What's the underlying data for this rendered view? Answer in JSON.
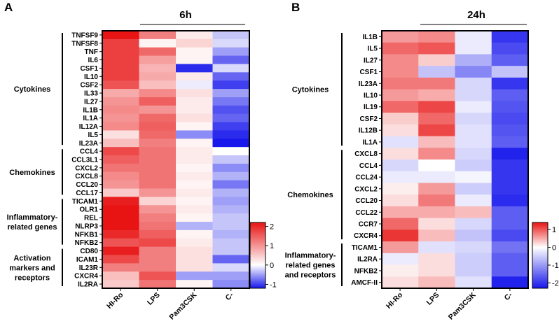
{
  "chart_data": [
    {
      "type": "heatmap",
      "panel": "A",
      "title": "6h",
      "columns": [
        "HI-Ro",
        "LPS",
        "Pam3CSK",
        "C-"
      ],
      "rows": [
        "TNFSF9",
        "TNFSF8",
        "TNF",
        "IL6",
        "CSF1",
        "IL10",
        "CSF2",
        "IL33",
        "IL27",
        "IL1B",
        "IL1A",
        "IL12A",
        "IL5",
        "IL23A",
        "CCL4",
        "CCL3L1",
        "CXCL2",
        "CXCL8",
        "CCL20",
        "CCL17",
        "TICAM1",
        "OLR1",
        "REL",
        "NLRP3",
        "NFKB1",
        "NFKB2",
        "CD80",
        "ICAM1",
        "IL23R",
        "CXCR4",
        "IL2RA"
      ],
      "groups": [
        {
          "label": [
            "Cytokines"
          ],
          "start": 0,
          "end": 13
        },
        {
          "label": [
            "Chemokines"
          ],
          "start": 14,
          "end": 19
        },
        {
          "label": [
            "Inflammatory-",
            "related genes"
          ],
          "start": 20,
          "end": 25
        },
        {
          "label": [
            "Activation",
            "markers and",
            "receptors"
          ],
          "start": 26,
          "end": 30
        }
      ],
      "colorbar": {
        "min": -1.2,
        "max": 2.2,
        "ticks": [
          -1,
          0,
          1,
          2
        ]
      },
      "values": [
        [
          2.2,
          1.2,
          0.2,
          -0.3
        ],
        [
          1.8,
          0.1,
          0.4,
          -0.2
        ],
        [
          1.8,
          1.4,
          0.1,
          -0.5
        ],
        [
          1.8,
          0.9,
          0.1,
          -0.8
        ],
        [
          1.8,
          0.7,
          -1.1,
          -0.2
        ],
        [
          1.8,
          0.8,
          0.2,
          -0.8
        ],
        [
          1.6,
          0.6,
          -0.1,
          -1.0
        ],
        [
          0.8,
          1.1,
          0.3,
          -0.5
        ],
        [
          1.0,
          1.5,
          0.2,
          -0.7
        ],
        [
          1.1,
          1.0,
          0.2,
          -0.9
        ],
        [
          1.0,
          1.4,
          0.3,
          -0.8
        ],
        [
          1.1,
          1.5,
          0.1,
          -1.0
        ],
        [
          0.3,
          1.4,
          -0.6,
          -1.1
        ],
        [
          0.6,
          1.2,
          0.1,
          -1.2
        ],
        [
          1.7,
          1.3,
          0.2,
          0.0
        ],
        [
          1.5,
          1.3,
          0.2,
          -0.3
        ],
        [
          1.3,
          1.3,
          0.1,
          -0.6
        ],
        [
          1.1,
          1.3,
          0.2,
          -0.4
        ],
        [
          1.0,
          1.3,
          0.1,
          -0.7
        ],
        [
          0.5,
          1.0,
          0.2,
          -0.4
        ],
        [
          2.1,
          0.4,
          0.1,
          -0.5
        ],
        [
          2.2,
          1.0,
          0.2,
          -0.4
        ],
        [
          2.2,
          1.2,
          0.1,
          -0.3
        ],
        [
          2.2,
          1.3,
          -0.4,
          -0.3
        ],
        [
          2.0,
          1.5,
          0.1,
          -0.4
        ],
        [
          1.6,
          1.7,
          0.2,
          -0.3
        ],
        [
          2.1,
          1.2,
          0.3,
          -0.3
        ],
        [
          1.7,
          1.2,
          0.3,
          -0.8
        ],
        [
          1.2,
          1.2,
          0.3,
          -0.2
        ],
        [
          0.6,
          1.6,
          -0.5,
          -0.5
        ],
        [
          0.5,
          1.3,
          0.1,
          -0.6
        ]
      ]
    },
    {
      "type": "heatmap",
      "panel": "B",
      "title": "24h",
      "columns": [
        "HI-Ro",
        "LPS",
        "Pam3CSK",
        "C-"
      ],
      "rows": [
        "IL1B",
        "IL5",
        "IL27",
        "CSF1",
        "IL23A",
        "IL10",
        "IL19",
        "CSF2",
        "IL12B",
        "IL1A",
        "CXCL8",
        "CCL4",
        "CCL24",
        "CXCL2",
        "CCL20",
        "CCL22",
        "CCR7",
        "CXCR4",
        "TICAM1",
        "IL2RA",
        "NFKB2",
        "AMCF-II"
      ],
      "groups": [
        {
          "label": [
            "Cytokines"
          ],
          "start": 0,
          "end": 9
        },
        {
          "label": [
            "Chemokines"
          ],
          "start": 10,
          "end": 17
        },
        {
          "label": [
            "Inflammatory-",
            "related genes",
            "and receptors"
          ],
          "start": 18,
          "end": 21
        }
      ],
      "colorbar": {
        "min": -2.3,
        "max": 1.4,
        "ticks": [
          -2,
          -1,
          0,
          1
        ]
      },
      "values": [
        [
          0.6,
          0.7,
          -0.2,
          -2.0
        ],
        [
          0.9,
          1.0,
          -0.2,
          -1.8
        ],
        [
          0.7,
          0.3,
          -0.8,
          -1.6
        ],
        [
          0.7,
          -0.6,
          -1.2,
          -0.6
        ],
        [
          0.8,
          0.8,
          -0.4,
          -2.0
        ],
        [
          0.6,
          0.5,
          -0.4,
          -1.6
        ],
        [
          0.9,
          1.1,
          -0.2,
          -1.7
        ],
        [
          0.3,
          0.9,
          -0.4,
          -1.8
        ],
        [
          0.2,
          1.1,
          -0.3,
          -1.7
        ],
        [
          -0.3,
          0.4,
          -0.3,
          -1.6
        ],
        [
          0.2,
          0.7,
          -0.4,
          -2.2
        ],
        [
          -0.4,
          0.0,
          -0.5,
          -2.0
        ],
        [
          -0.2,
          -0.2,
          -0.1,
          -2.0
        ],
        [
          0.1,
          0.6,
          -0.5,
          -2.0
        ],
        [
          0.2,
          0.8,
          -0.2,
          -2.1
        ],
        [
          0.5,
          0.5,
          0.4,
          -1.6
        ],
        [
          0.9,
          0.2,
          -0.4,
          -1.6
        ],
        [
          1.2,
          0.4,
          -0.6,
          -1.8
        ],
        [
          0.6,
          -0.3,
          -0.4,
          -1.4
        ],
        [
          -0.2,
          0.2,
          -0.5,
          -1.6
        ],
        [
          0.1,
          0.2,
          -0.5,
          -1.6
        ],
        [
          0.2,
          0.4,
          -0.3,
          -2.2
        ]
      ]
    }
  ]
}
